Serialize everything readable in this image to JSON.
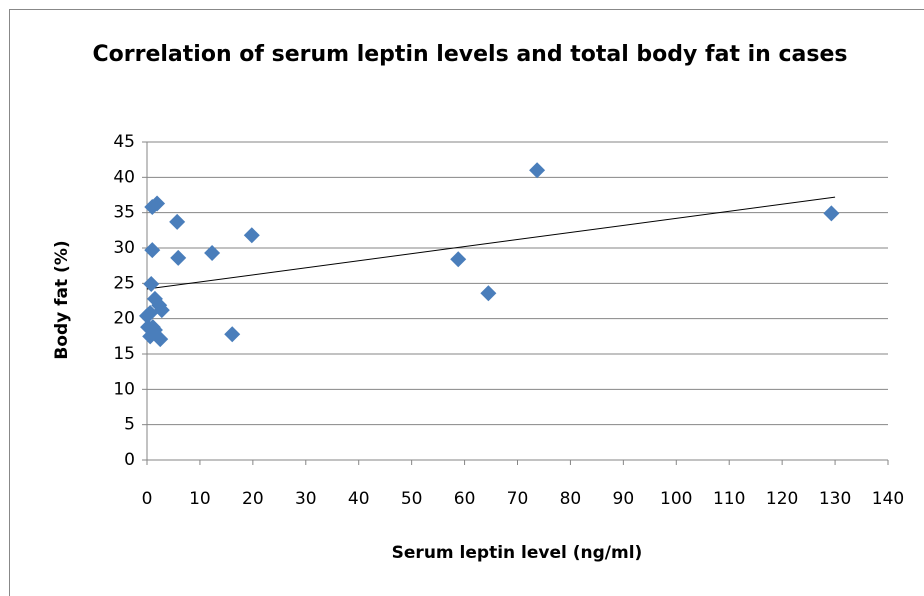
{
  "chart_data": {
    "type": "scatter",
    "title": "Correlation of serum leptin levels and total body fat in cases",
    "xlabel": "Serum leptin level (ng/ml)",
    "ylabel": "Body fat (%)",
    "series": [
      {
        "color": "#4a7ebb",
        "x": [
          1,
          1.9,
          5.7,
          1,
          5.9,
          12.3,
          19.8,
          0.8,
          1.5,
          2.3,
          2.8,
          0,
          0.6,
          1.1,
          0.2,
          0.6,
          2.5,
          1.5,
          16.1,
          58.8,
          64.5,
          73.7,
          129.3
        ],
        "values": [
          35.8,
          36.3,
          33.7,
          29.7,
          28.6,
          29.3,
          31.8,
          24.9,
          22.8,
          21.9,
          21.2,
          20.4,
          20.8,
          18.8,
          18.8,
          17.5,
          17.1,
          18.4,
          17.8,
          28.4,
          23.6,
          41.0,
          34.9
        ]
      }
    ],
    "trendline": {
      "x": [
        0,
        130
      ],
      "values": [
        24.2,
        37.2
      ],
      "color": "#000000"
    },
    "xlim": [
      0,
      140
    ],
    "xticks": [
      0,
      10,
      20,
      30,
      40,
      50,
      60,
      70,
      80,
      90,
      100,
      110,
      120,
      130,
      140
    ],
    "ylim": [
      0,
      45
    ],
    "yticks": [
      0,
      5,
      10,
      15,
      20,
      25,
      30,
      35,
      40,
      45
    ],
    "grid": true
  }
}
